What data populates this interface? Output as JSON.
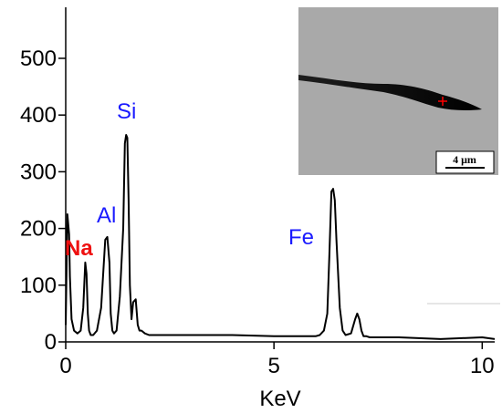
{
  "chart_data": {
    "type": "line",
    "xlabel": "KeV",
    "ylabel": "",
    "xlim": [
      0,
      10.3
    ],
    "ylim": [
      0,
      590
    ],
    "x_ticks": [
      0,
      5,
      10
    ],
    "y_ticks": [
      0,
      100,
      200,
      300,
      400,
      500
    ],
    "grid": false,
    "series": [
      {
        "color": "#000000",
        "x": [
          0.0,
          0.04,
          0.08,
          0.1,
          0.14,
          0.2,
          0.28,
          0.36,
          0.42,
          0.47,
          0.5,
          0.53,
          0.56,
          0.6,
          0.66,
          0.75,
          0.85,
          0.95,
          1.0,
          1.05,
          1.08,
          1.12,
          1.16,
          1.22,
          1.3,
          1.38,
          1.42,
          1.45,
          1.48,
          1.51,
          1.54,
          1.58,
          1.62,
          1.68,
          1.73,
          1.77,
          1.82,
          1.9,
          2.0,
          2.3,
          3.0,
          4.0,
          5.0,
          5.5,
          5.8,
          6.0,
          6.1,
          6.2,
          6.28,
          6.33,
          6.38,
          6.42,
          6.46,
          6.5,
          6.58,
          6.65,
          6.72,
          6.85,
          6.95,
          7.0,
          7.05,
          7.1,
          7.15,
          7.22,
          7.3,
          7.5,
          8.0,
          9.0,
          10.0,
          10.3
        ],
        "values": [
          30,
          225,
          190,
          115,
          40,
          20,
          15,
          20,
          60,
          140,
          120,
          50,
          20,
          12,
          12,
          20,
          60,
          180,
          185,
          140,
          50,
          20,
          15,
          20,
          80,
          200,
          350,
          365,
          360,
          250,
          100,
          40,
          70,
          75,
          30,
          20,
          20,
          15,
          12,
          12,
          12,
          12,
          10,
          10,
          10,
          10,
          12,
          20,
          50,
          150,
          265,
          270,
          250,
          180,
          60,
          20,
          12,
          15,
          40,
          50,
          40,
          20,
          10,
          10,
          8,
          8,
          8,
          5,
          8,
          5
        ]
      }
    ],
    "annotations": [
      {
        "text": "Si",
        "color": "#1a1aff"
      },
      {
        "text": "Al",
        "color": "#1a1aff"
      },
      {
        "text": "Na",
        "color": "#ee1111"
      },
      {
        "text": "Fe",
        "color": "#1a1aff"
      }
    ],
    "inset": {
      "scale_bar_label": "4 μm",
      "background_color": "#a9a9a9"
    }
  }
}
